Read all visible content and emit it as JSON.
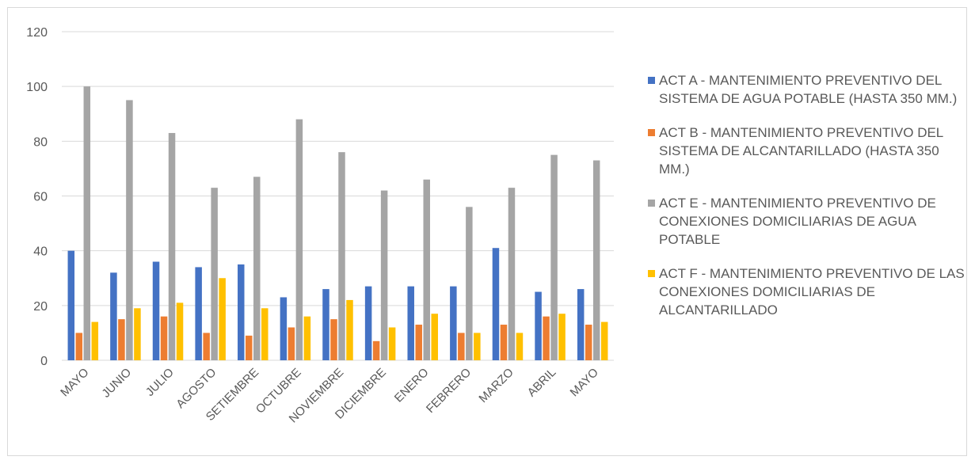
{
  "chart_data": {
    "type": "bar",
    "categories": [
      "MAYO",
      "JUNIO",
      "JULIO",
      "AGOSTO",
      "SETIEMBRE",
      "OCTUBRE",
      "NOVIEMBRE",
      "DICIEMBRE",
      "ENERO",
      "FEBRERO",
      "MARZO",
      "ABRIL",
      "MAYO"
    ],
    "series": [
      {
        "name": "ACT A - MANTENIMIENTO PREVENTIVO DEL SISTEMA DE AGUA POTABLE (HASTA 350 MM.)",
        "color": "#4472C4",
        "values": [
          40,
          32,
          36,
          34,
          35,
          23,
          26,
          27,
          27,
          27,
          41,
          25,
          26
        ]
      },
      {
        "name": "ACT B - MANTENIMIENTO PREVENTIVO DEL SISTEMA DE ALCANTARILLADO (HASTA 350 MM.)",
        "color": "#ED7D31",
        "values": [
          10,
          15,
          16,
          10,
          9,
          12,
          15,
          7,
          13,
          10,
          13,
          16,
          13
        ]
      },
      {
        "name": "ACT E - MANTENIMIENTO PREVENTIVO DE CONEXIONES DOMICILIARIAS DE AGUA POTABLE",
        "color": "#A5A5A5",
        "values": [
          100,
          95,
          83,
          63,
          67,
          88,
          76,
          62,
          66,
          56,
          63,
          75,
          73
        ]
      },
      {
        "name": "ACT F - MANTENIMIENTO PREVENTIVO DE LAS CONEXIONES DOMICILIARIAS DE ALCANTARILLADO",
        "color": "#FFC000",
        "values": [
          14,
          19,
          21,
          30,
          19,
          16,
          22,
          12,
          17,
          10,
          10,
          17,
          14
        ]
      }
    ],
    "ylim": [
      0,
      120
    ],
    "yticks": [
      0,
      20,
      40,
      60,
      80,
      100,
      120
    ],
    "grid": true,
    "legend_position": "right",
    "title": "",
    "xlabel": "",
    "ylabel": ""
  }
}
